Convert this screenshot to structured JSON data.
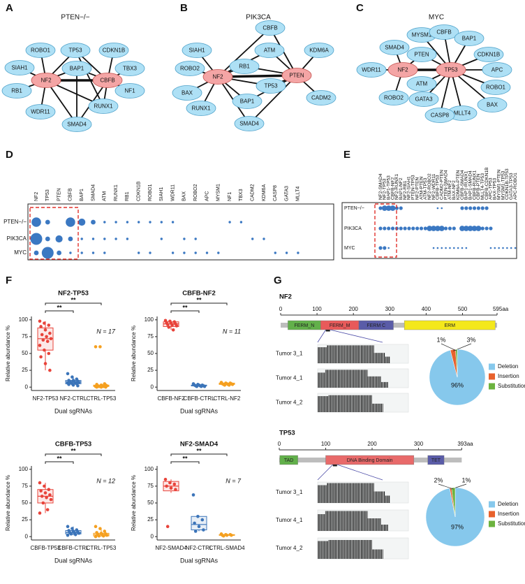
{
  "networks": [
    {
      "letter": "A",
      "title": "PTEN−/−",
      "highlight": [
        "NF2",
        "CBFB"
      ],
      "nodes": [
        "TP53",
        "ROBO1",
        "CDKN1B",
        "SIAH1",
        "BAP1",
        "TBX3",
        "NF2",
        "CBFB",
        "RB1",
        "NF1",
        "RUNX1",
        "WDR11",
        "SMAD4"
      ],
      "edges": [
        [
          "NF2",
          "CBFB"
        ],
        [
          "NF2",
          "TP53"
        ],
        [
          "NF2",
          "ROBO1"
        ],
        [
          "NF2",
          "SIAH1"
        ],
        [
          "NF2",
          "RB1"
        ],
        [
          "NF2",
          "WDR11"
        ],
        [
          "NF2",
          "BAP1"
        ],
        [
          "NF2",
          "SMAD4"
        ],
        [
          "NF2",
          "RUNX1"
        ],
        [
          "CBFB",
          "TP53"
        ],
        [
          "CBFB",
          "CDKN1B"
        ],
        [
          "CBFB",
          "TBX3"
        ],
        [
          "CBFB",
          "NF1"
        ],
        [
          "CBFB",
          "RUNX1"
        ],
        [
          "CBFB",
          "SMAD4"
        ],
        [
          "CBFB",
          "BAP1"
        ],
        [
          "TP53",
          "RUNX1"
        ],
        [
          "BAP1",
          "SMAD4"
        ]
      ]
    },
    {
      "letter": "B",
      "title": "PIK3CA",
      "highlight": [
        "NF2",
        "PTEN"
      ],
      "nodes": [
        "CBFB",
        "SIAH1",
        "ATM",
        "KDM6A",
        "ROBO2",
        "RB1",
        "NF2",
        "PTEN",
        "BAX",
        "TP53",
        "CADM2",
        "RUNX1",
        "BAP1",
        "SMAD4"
      ],
      "edges": [
        [
          "NF2",
          "PTEN"
        ],
        [
          "NF2",
          "CBFB"
        ],
        [
          "NF2",
          "ATM"
        ],
        [
          "NF2",
          "RB1"
        ],
        [
          "NF2",
          "SIAH1"
        ],
        [
          "NF2",
          "ROBO2"
        ],
        [
          "NF2",
          "BAX"
        ],
        [
          "NF2",
          "RUNX1"
        ],
        [
          "NF2",
          "BAP1"
        ],
        [
          "NF2",
          "TP53"
        ],
        [
          "NF2",
          "SMAD4"
        ],
        [
          "PTEN",
          "CBFB"
        ],
        [
          "PTEN",
          "ATM"
        ],
        [
          "PTEN",
          "KDM6A"
        ],
        [
          "PTEN",
          "CADM2"
        ],
        [
          "PTEN",
          "TP53"
        ],
        [
          "PTEN",
          "BAP1"
        ],
        [
          "PTEN",
          "SMAD4"
        ],
        [
          "PTEN",
          "RB1"
        ]
      ]
    },
    {
      "letter": "C",
      "title": "MYC",
      "highlight": [
        "NF2",
        "TP53"
      ],
      "nodes": [
        "MYSM1",
        "CBFB",
        "BAP1",
        "SMAD4",
        "PTEN",
        "CDKN1B",
        "WDR11",
        "NF2",
        "TP53",
        "APC",
        "ATM",
        "ROBO1",
        "GATA3",
        "BAX",
        "ROBO2",
        "MLLT4",
        "CASP8"
      ],
      "edges": [
        [
          "NF2",
          "TP53"
        ],
        [
          "NF2",
          "WDR11"
        ],
        [
          "NF2",
          "SMAD4"
        ],
        [
          "NF2",
          "ROBO2"
        ],
        [
          "NF2",
          "PTEN"
        ],
        [
          "TP53",
          "PTEN"
        ],
        [
          "TP53",
          "MYSM1"
        ],
        [
          "TP53",
          "CBFB"
        ],
        [
          "TP53",
          "BAP1"
        ],
        [
          "TP53",
          "CDKN1B"
        ],
        [
          "TP53",
          "APC"
        ],
        [
          "TP53",
          "ROBO1"
        ],
        [
          "TP53",
          "BAX"
        ],
        [
          "TP53",
          "MLLT4"
        ],
        [
          "TP53",
          "CASP8"
        ],
        [
          "TP53",
          "GATA3"
        ],
        [
          "TP53",
          "ATM"
        ]
      ]
    }
  ],
  "dotplots": [
    {
      "letter": "D",
      "columns": [
        "NF2",
        "TP53",
        "PTEN",
        "CBFB",
        "BAP1",
        "SMAD4",
        "ATM",
        "RUNX1",
        "RB1",
        "CDKN1B",
        "ROBO1",
        "SIAH1",
        "WDR11",
        "BAX",
        "ROBO2",
        "APC",
        "MYSM1",
        "NF1",
        "TBX3",
        "CADM2",
        "KDM6A",
        "CASP8",
        "GATA3",
        "MLLT4"
      ],
      "rows": [
        "PTEN−/−",
        "PIK3CA",
        "MYC"
      ],
      "values": [
        [
          4,
          2,
          null,
          4,
          3,
          2,
          1,
          1,
          1,
          1,
          1,
          1,
          1,
          null,
          null,
          null,
          null,
          1,
          1,
          null,
          null,
          null,
          null,
          null
        ],
        [
          5,
          2,
          3,
          2,
          1,
          1,
          1,
          1,
          1,
          null,
          null,
          1,
          null,
          1,
          1,
          null,
          null,
          null,
          null,
          1,
          1,
          null,
          null,
          null
        ],
        [
          2,
          5,
          2,
          1,
          1,
          1,
          1,
          null,
          null,
          1,
          1,
          null,
          1,
          1,
          1,
          1,
          1,
          null,
          null,
          null,
          null,
          1,
          1,
          1
        ]
      ]
    },
    {
      "letter": "E",
      "columns": [
        "NF2-SMAD4",
        "NF2-TP53",
        "BAP1-TP53",
        "CBFB-NF2",
        "NF2-RUNX1",
        "BAP1-NF2",
        "NF2-RB1",
        "NF2-SIAH1",
        "PTEN-TP53",
        "NF2-PTEN",
        "ATM-PTEN",
        "ATM-TP53",
        "NF2-ROBO2",
        "NF2-WDR11",
        "CBFB-TP53",
        "CADM2-PTEN",
        "PTEN-SMAD4",
        "ATM-NF2",
        "BAX-NF2",
        "KDM6A-PTEN",
        "CBFB-SMAD4",
        "BAP1-RUNX1",
        "BAP1-SMAD4",
        "CBFB-RUNX1",
        "CBFB-PTEN",
        "MLLT4-TP53",
        "CBFB-CDKN1B",
        "APC-TP53",
        "BAX-TP53",
        "MYSM1-PTEN",
        "MYSM1-TP53",
        "CDKN1B-TP53",
        "GATA3-TP53",
        "APC-ROBO1"
      ],
      "rows": [
        "PTEN−/−",
        "PIK3CA",
        "MYC"
      ],
      "values": [
        [
          2,
          3,
          3,
          3,
          2,
          2,
          null,
          null,
          null,
          null,
          null,
          null,
          null,
          null,
          1,
          1,
          null,
          null,
          null,
          null,
          2,
          2,
          2,
          2,
          2,
          2,
          2,
          null,
          null,
          null,
          null,
          null,
          null,
          null
        ],
        [
          2,
          2,
          2,
          2,
          2,
          2,
          2,
          2,
          2,
          2,
          2,
          2,
          3,
          3,
          3,
          3,
          2,
          2,
          2,
          null,
          3,
          3,
          3,
          3,
          3,
          2,
          2,
          2,
          null,
          null,
          null,
          null,
          null,
          null
        ],
        [
          2,
          2,
          1,
          null,
          null,
          null,
          null,
          null,
          null,
          null,
          null,
          null,
          null,
          1,
          1,
          1,
          1,
          1,
          1,
          1,
          1,
          1,
          null,
          null,
          null,
          null,
          null,
          1,
          1,
          1,
          1,
          1,
          1,
          1
        ]
      ]
    }
  ],
  "panel_f": {
    "letter": "F",
    "plots": [
      {
        "title": "NF2-TP53",
        "ylabel": "Relative abundance %",
        "xlabel": "Dual sgRNAs",
        "n_label": "N = 17",
        "significance": [
          "**",
          "**"
        ],
        "categories": [
          "NF2-TP53",
          "NF2-CTRL",
          "CTRL-TP53"
        ],
        "colors": [
          "#e8433a",
          "#3b74b9",
          "#f5a020"
        ],
        "ylim": [
          -5,
          105
        ],
        "yticks": [
          0,
          25,
          50,
          75,
          100
        ],
        "boxes": [
          {
            "whisker_low": 25,
            "q1": 55,
            "median": 72,
            "q3": 88,
            "whisker_high": 98
          },
          {
            "whisker_low": 2,
            "q1": 5,
            "median": 8,
            "q3": 10,
            "whisker_high": 15
          },
          {
            "whisker_low": 0,
            "q1": 1,
            "median": 2,
            "q3": 3,
            "whisker_high": 5
          }
        ],
        "points": [
          [
            98,
            95,
            92,
            90,
            85,
            80,
            78,
            75,
            72,
            70,
            68,
            62,
            55,
            50,
            45,
            35,
            25
          ],
          [
            20,
            15,
            12,
            10,
            10,
            9,
            8,
            8,
            7,
            7,
            6,
            6,
            5,
            5,
            4,
            3,
            2
          ],
          [
            60,
            60,
            5,
            4,
            3,
            3,
            2,
            2,
            2,
            1,
            1,
            1,
            1,
            1,
            0,
            0,
            0
          ]
        ]
      },
      {
        "title": "CBFB-NF2",
        "ylabel": "Relative abundance %",
        "xlabel": "Dual sgRNAs",
        "n_label": "N = 11",
        "significance": [
          "**",
          "**"
        ],
        "categories": [
          "CBFB-NF2",
          "CBFB-CTRL",
          "CTRL-NF2"
        ],
        "colors": [
          "#e8433a",
          "#3b74b9",
          "#f5a020"
        ],
        "ylim": [
          -5,
          105
        ],
        "yticks": [
          0,
          25,
          50,
          75,
          100
        ],
        "boxes": [
          {
            "whisker_low": 85,
            "q1": 90,
            "median": 94,
            "q3": 97,
            "whisker_high": 99
          },
          {
            "whisker_low": 1,
            "q1": 2,
            "median": 2,
            "q3": 3,
            "whisker_high": 5
          },
          {
            "whisker_low": 3,
            "q1": 4,
            "median": 5,
            "q3": 6,
            "whisker_high": 7
          }
        ],
        "points": [
          [
            99,
            98,
            97,
            96,
            95,
            94,
            93,
            92,
            91,
            89,
            85
          ],
          [
            5,
            4,
            3,
            3,
            3,
            2,
            2,
            2,
            1,
            1,
            1
          ],
          [
            7,
            6,
            6,
            5,
            5,
            5,
            4,
            4,
            4,
            3,
            3
          ]
        ]
      },
      {
        "title": "CBFB-TP53",
        "ylabel": "Relative abundance %",
        "xlabel": "Dual sgRNAs",
        "n_label": "N = 12",
        "significance": [
          "**",
          "**"
        ],
        "categories": [
          "CBFB-TP53",
          "CBFB-CTRL",
          "CTRL-TP53"
        ],
        "colors": [
          "#e8433a",
          "#3b74b9",
          "#f5a020"
        ],
        "ylim": [
          -5,
          105
        ],
        "yticks": [
          0,
          25,
          50,
          75,
          100
        ],
        "boxes": [
          {
            "whisker_low": 35,
            "q1": 50,
            "median": 60,
            "q3": 70,
            "whisker_high": 80
          },
          {
            "whisker_low": 2,
            "q1": 4,
            "median": 6,
            "q3": 9,
            "whisker_high": 15
          },
          {
            "whisker_low": 0,
            "q1": 1,
            "median": 3,
            "q3": 5,
            "whisker_high": 12
          }
        ],
        "points": [
          [
            80,
            75,
            70,
            68,
            65,
            62,
            60,
            58,
            55,
            50,
            40,
            35
          ],
          [
            15,
            12,
            10,
            9,
            8,
            7,
            6,
            6,
            5,
            4,
            3,
            2
          ],
          [
            15,
            12,
            8,
            6,
            5,
            4,
            3,
            3,
            2,
            1,
            1,
            0
          ]
        ]
      },
      {
        "title": "NF2-SMAD4",
        "ylabel": "Relative abundance %",
        "xlabel": "Dual sgRNAs",
        "n_label": "N = 7",
        "significance": [
          "**",
          "**"
        ],
        "categories": [
          "NF2-SMAD4",
          "NF2-CTRL",
          "CTRL-SMAD4"
        ],
        "colors": [
          "#e8433a",
          "#3b74b9",
          "#f5a020"
        ],
        "ylim": [
          -5,
          105
        ],
        "yticks": [
          0,
          25,
          50,
          75,
          100
        ],
        "boxes": [
          {
            "whisker_low": 65,
            "q1": 68,
            "median": 75,
            "q3": 82,
            "whisker_high": 85
          },
          {
            "whisker_low": 8,
            "q1": 10,
            "median": 18,
            "q3": 30,
            "whisker_high": 30
          },
          {
            "whisker_low": 1,
            "q1": 2,
            "median": 2,
            "q3": 3,
            "whisker_high": 4
          }
        ],
        "points": [
          [
            85,
            80,
            78,
            75,
            72,
            70,
            15
          ],
          [
            62,
            30,
            25,
            20,
            15,
            10,
            8
          ],
          [
            4,
            3,
            3,
            2,
            2,
            2,
            1
          ]
        ]
      }
    ]
  },
  "panel_g": {
    "letter": "G",
    "genes": [
      {
        "name": "NF2",
        "xlim": [
          0,
          595
        ],
        "xticks": [
          0,
          100,
          200,
          300,
          400,
          500,
          {
            "value": 595,
            "label": "595aa"
          }
        ],
        "domains": [
          {
            "label": "FERM_N",
            "start": 20,
            "end": 110,
            "color": "#62b04a"
          },
          {
            "label": "FERM_M",
            "start": 110,
            "end": 215,
            "color": "#e85a5a"
          },
          {
            "label": "FERM C",
            "start": 215,
            "end": 310,
            "color": "#5a5ca8"
          },
          {
            "label": "ERM",
            "start": 340,
            "end": 590,
            "color": "#f4e81c"
          }
        ],
        "tumors": [
          "Tumor 3_1",
          "Tumor 4_1",
          "Tumor 4_2"
        ],
        "coverage_color": "#4b4ba6",
        "pie": {
          "values": [
            96,
            3,
            1
          ],
          "value_labels": [
            "96%",
            "3%",
            "1%"
          ],
          "labels": [
            "Deletion",
            "Insertion",
            "Substitution"
          ],
          "colors": [
            "#86c8ec",
            "#e8612c",
            "#6cb33f"
          ]
        }
      },
      {
        "name": "TP53",
        "xlim": [
          0,
          393
        ],
        "xticks": [
          0,
          100,
          200,
          300,
          {
            "value": 393,
            "label": "393aa"
          }
        ],
        "domains": [
          {
            "label": "TAD",
            "start": 1,
            "end": 40,
            "color": "#62b04a"
          },
          {
            "label": "DNA Binding Domain",
            "start": 100,
            "end": 290,
            "color": "#e86a6a"
          },
          {
            "label": "TET",
            "start": 320,
            "end": 355,
            "color": "#5a5ca8"
          }
        ],
        "tumors": [
          "Tumor 3_1",
          "Tumor 4_1",
          "Tumor 4_2"
        ],
        "coverage_color": "#3bb0e3",
        "pie": {
          "values": [
            97,
            1,
            2
          ],
          "value_labels": [
            "97%",
            "1%",
            "2%"
          ],
          "labels": [
            "Deletion",
            "Insertion",
            "Substitution"
          ],
          "colors": [
            "#86c8ec",
            "#e8612c",
            "#6cb33f"
          ]
        }
      }
    ]
  }
}
